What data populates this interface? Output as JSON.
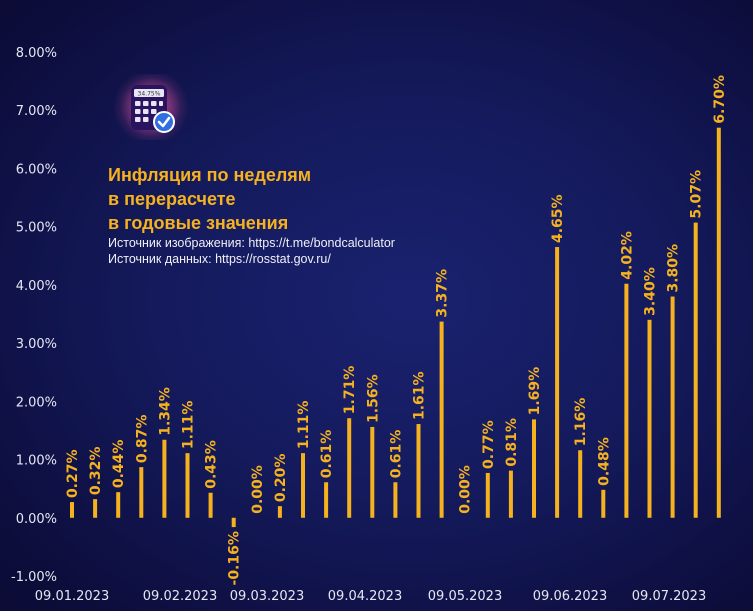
{
  "header": {
    "title_lines": [
      "Инфляция по неделям",
      "в перерасчете",
      "в годовые значения"
    ],
    "source_image": "Источник изображения: https://t.me/bondcalculator",
    "source_data": "Источник данных: https://rosstat.gov.ru/"
  },
  "logo": {
    "display": "34.75%",
    "icon": "calculator-check-icon"
  },
  "colors": {
    "bar": "#f5b21e",
    "text": "#e6e6f2",
    "accent": "#f5b21e"
  },
  "chart_data": {
    "type": "bar",
    "title": "Инфляция по неделям в перерасчете в годовые значения",
    "values": [
      0.27,
      0.32,
      0.44,
      0.87,
      1.34,
      1.11,
      0.43,
      -0.16,
      0.0,
      0.2,
      1.11,
      0.61,
      1.71,
      1.56,
      0.61,
      1.61,
      3.37,
      0.0,
      0.77,
      0.81,
      1.69,
      4.65,
      1.16,
      0.48,
      4.02,
      3.4,
      3.8,
      5.07,
      6.7
    ],
    "value_labels": [
      "0.27%",
      "0.32%",
      "0.44%",
      "0.87%",
      "1.34%",
      "1.11%",
      "0.43%",
      "-0.16%",
      "0.00%",
      "0.20%",
      "1.11%",
      "0.61%",
      "1.71%",
      "1.56%",
      "0.61%",
      "1.61%",
      "3.37%",
      "0.00%",
      "0.77%",
      "0.81%",
      "1.69%",
      "4.65%",
      "1.16%",
      "0.48%",
      "4.02%",
      "3.40%",
      "3.80%",
      "5.07%",
      "6.70%"
    ],
    "x_tick_labels": [
      "09.01.2023",
      "09.02.2023",
      "09.03.2023",
      "09.04.2023",
      "09.05.2023",
      "09.06.2023",
      "09.07.2023"
    ],
    "y_tick_labels": [
      "8.00%",
      "7.00%",
      "6.00%",
      "5.00%",
      "4.00%",
      "3.00%",
      "2.00%",
      "1.00%",
      "0.00%",
      "-1.00%"
    ],
    "ylim": [
      -1.0,
      8.0
    ],
    "grid": false,
    "legend": "none"
  }
}
